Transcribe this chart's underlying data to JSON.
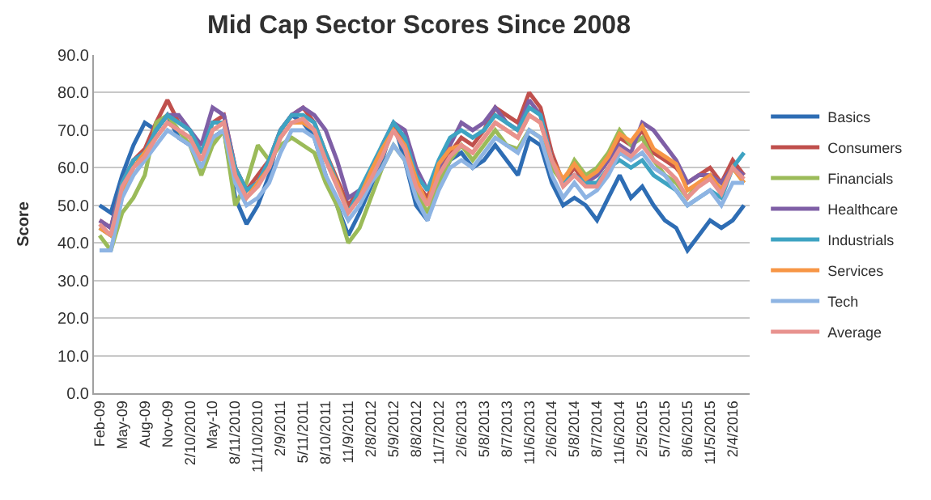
{
  "chart_data": {
    "type": "line",
    "title": "Mid Cap Sector Scores Since 2008",
    "ylabel": "Score",
    "categories": [
      "Feb-09",
      null,
      "May-09",
      null,
      "Aug-09",
      null,
      "Nov-09",
      null,
      "2/10/2010",
      null,
      "May-10",
      null,
      "8/11/2010",
      null,
      "11/10/2010",
      null,
      "2/9/2011",
      null,
      "5/11/2011",
      null,
      "8/10/2011",
      null,
      "11/9/2011",
      null,
      "2/8/2012",
      null,
      "5/9/2012",
      null,
      "8/8/2012",
      null,
      "11/7/2012",
      null,
      "2/6/2013",
      null,
      "5/8/2013",
      null,
      "8/7/2013",
      null,
      "11/6/2013",
      null,
      "2/6/2014",
      null,
      "5/8/2014",
      null,
      "8/7/2014",
      null,
      "11/6/2014",
      null,
      "2/5/2015",
      null,
      "5/7/2015",
      null,
      "8/6/2015",
      null,
      "11/5/2015",
      null,
      "2/4/2016",
      null
    ],
    "ylim": [
      0,
      90
    ],
    "yticks": [
      {
        "value": 0,
        "label": "0.0"
      },
      {
        "value": 10,
        "label": "10.0"
      },
      {
        "value": 20,
        "label": "20.0"
      },
      {
        "value": 30,
        "label": "30.0"
      },
      {
        "value": 40,
        "label": "40.0"
      },
      {
        "value": 50,
        "label": "50.0"
      },
      {
        "value": 60,
        "label": "60.0"
      },
      {
        "value": 70,
        "label": "70.0"
      },
      {
        "value": 80,
        "label": "80.0"
      },
      {
        "value": 90,
        "label": "90.0"
      }
    ],
    "grid": "y",
    "legend": "right",
    "marker": "none",
    "line_style": "solid",
    "series": [
      {
        "name": "Basics",
        "color": "#2e6db4",
        "values": [
          50,
          48,
          58,
          66,
          72,
          70,
          74,
          68,
          66,
          60,
          68,
          70,
          52,
          45,
          50,
          58,
          70,
          74,
          72,
          68,
          58,
          50,
          42,
          48,
          55,
          62,
          72,
          62,
          50,
          46,
          56,
          62,
          64,
          60,
          62,
          66,
          62,
          58,
          68,
          66,
          56,
          50,
          52,
          50,
          46,
          52,
          58,
          52,
          55,
          50,
          46,
          44,
          38,
          42,
          46,
          44,
          46,
          50
        ]
      },
      {
        "name": "Consumers",
        "color": "#c0504d",
        "values": [
          46,
          44,
          56,
          62,
          65,
          72,
          78,
          72,
          70,
          64,
          72,
          74,
          60,
          54,
          58,
          62,
          70,
          74,
          76,
          72,
          64,
          57,
          50,
          54,
          58,
          64,
          72,
          66,
          56,
          52,
          60,
          64,
          68,
          66,
          70,
          76,
          74,
          72,
          80,
          76,
          64,
          56,
          60,
          56,
          58,
          62,
          68,
          66,
          70,
          64,
          62,
          60,
          56,
          58,
          60,
          56,
          62,
          58
        ]
      },
      {
        "name": "Financials",
        "color": "#9bbb59",
        "values": [
          42,
          38,
          48,
          52,
          58,
          72,
          74,
          70,
          66,
          58,
          66,
          70,
          50,
          56,
          66,
          62,
          66,
          68,
          66,
          64,
          56,
          50,
          40,
          44,
          52,
          60,
          66,
          62,
          54,
          48,
          56,
          62,
          66,
          62,
          66,
          70,
          66,
          65,
          70,
          68,
          60,
          56,
          62,
          58,
          60,
          64,
          70,
          66,
          68,
          62,
          58,
          56,
          52,
          56,
          58,
          54,
          60,
          56
        ]
      },
      {
        "name": "Healthcare",
        "color": "#7f5fa6",
        "values": [
          46,
          44,
          56,
          62,
          64,
          70,
          74,
          74,
          70,
          66,
          76,
          74,
          60,
          54,
          56,
          62,
          70,
          74,
          76,
          74,
          70,
          62,
          52,
          54,
          58,
          66,
          72,
          70,
          60,
          54,
          60,
          66,
          72,
          70,
          72,
          76,
          72,
          70,
          78,
          74,
          62,
          56,
          58,
          56,
          58,
          62,
          66,
          64,
          72,
          70,
          66,
          62,
          56,
          58,
          58,
          56,
          60,
          58
        ]
      },
      {
        "name": "Industrials",
        "color": "#3ea3c2",
        "values": [
          44,
          42,
          56,
          62,
          64,
          70,
          74,
          72,
          70,
          64,
          72,
          72,
          60,
          54,
          56,
          62,
          70,
          74,
          74,
          72,
          64,
          56,
          48,
          54,
          60,
          66,
          72,
          68,
          58,
          54,
          62,
          68,
          70,
          68,
          70,
          74,
          72,
          70,
          76,
          74,
          62,
          56,
          58,
          56,
          56,
          60,
          62,
          60,
          62,
          58,
          56,
          54,
          50,
          52,
          54,
          52,
          60,
          64
        ]
      },
      {
        "name": "Services",
        "color": "#f79646",
        "values": [
          44,
          42,
          54,
          60,
          64,
          68,
          72,
          70,
          68,
          62,
          70,
          72,
          58,
          52,
          56,
          60,
          68,
          72,
          72,
          70,
          62,
          56,
          48,
          52,
          59,
          65,
          70,
          66,
          57,
          50,
          61,
          65,
          66,
          64,
          68,
          72,
          70,
          68,
          74,
          72,
          62,
          57,
          61,
          57,
          59,
          63,
          69,
          67,
          71,
          65,
          63,
          61,
          54,
          56,
          58,
          54,
          60,
          56
        ]
      },
      {
        "name": "Tech",
        "color": "#8eb4e3",
        "values": [
          38,
          38,
          52,
          58,
          62,
          66,
          70,
          68,
          66,
          60,
          68,
          70,
          56,
          50,
          52,
          56,
          64,
          70,
          70,
          68,
          58,
          52,
          46,
          50,
          56,
          60,
          66,
          62,
          52,
          46,
          54,
          60,
          62,
          60,
          64,
          68,
          66,
          64,
          70,
          68,
          58,
          52,
          56,
          52,
          54,
          58,
          64,
          62,
          64,
          60,
          58,
          54,
          50,
          52,
          54,
          50,
          56,
          56
        ]
      },
      {
        "name": "Average",
        "color": "#e8928e",
        "values": [
          45,
          42,
          55,
          60,
          63,
          68,
          72,
          70,
          68,
          62,
          70,
          72,
          58,
          52,
          55,
          60,
          68,
          72,
          73,
          70,
          62,
          55,
          48,
          52,
          57,
          63,
          70,
          65,
          55,
          50,
          58,
          63,
          66,
          64,
          68,
          72,
          70,
          68,
          74,
          72,
          62,
          55,
          58,
          55,
          55,
          60,
          65,
          63,
          66,
          62,
          60,
          57,
          52,
          55,
          57,
          53,
          60,
          57
        ]
      }
    ]
  }
}
